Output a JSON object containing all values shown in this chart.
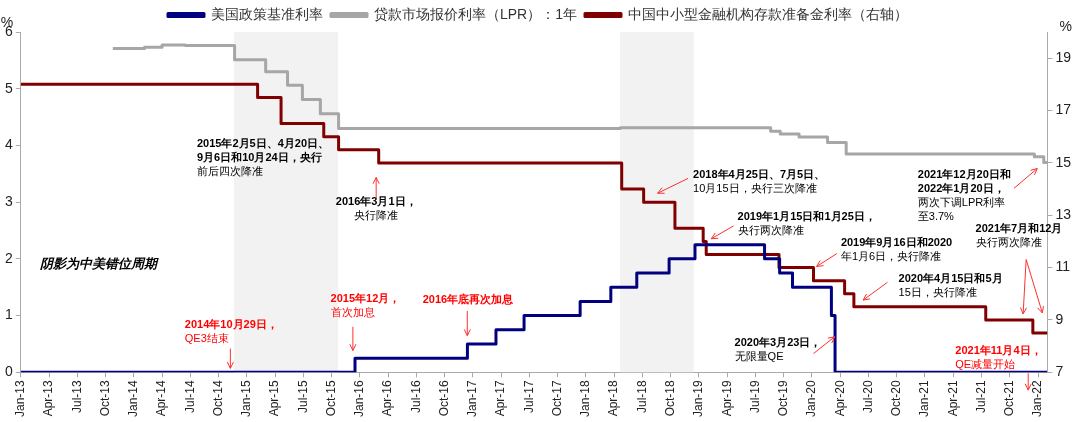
{
  "chart_data": {
    "type": "step",
    "legend": "top",
    "grid": false,
    "marker": "none",
    "ylabel": "%",
    "y2label": "%",
    "xlim": [
      "2013-01",
      "2022-02"
    ],
    "xticks": [
      {
        "value": "2013-01",
        "label": "Jan-13"
      },
      {
        "value": "2013-04",
        "label": "Apr-13"
      },
      {
        "value": "2013-07",
        "label": "Jul-13"
      },
      {
        "value": "2013-10",
        "label": "Oct-13"
      },
      {
        "value": "2014-01",
        "label": "Jan-14"
      },
      {
        "value": "2014-04",
        "label": "Apr-14"
      },
      {
        "value": "2014-07",
        "label": "Jul-14"
      },
      {
        "value": "2014-10",
        "label": "Oct-14"
      },
      {
        "value": "2015-01",
        "label": "Jan-15"
      },
      {
        "value": "2015-04",
        "label": "Apr-15"
      },
      {
        "value": "2015-07",
        "label": "Jul-15"
      },
      {
        "value": "2015-10",
        "label": "Oct-15"
      },
      {
        "value": "2016-01",
        "label": "Jan-16"
      },
      {
        "value": "2016-04",
        "label": "Apr-16"
      },
      {
        "value": "2016-07",
        "label": "Jul-16"
      },
      {
        "value": "2016-10",
        "label": "Oct-16"
      },
      {
        "value": "2017-01",
        "label": "Jan-17"
      },
      {
        "value": "2017-04",
        "label": "Apr-17"
      },
      {
        "value": "2017-07",
        "label": "Jul-17"
      },
      {
        "value": "2017-10",
        "label": "Oct-17"
      },
      {
        "value": "2018-01",
        "label": "Jan-18"
      },
      {
        "value": "2018-04",
        "label": "Apr-18"
      },
      {
        "value": "2018-07",
        "label": "Jul-18"
      },
      {
        "value": "2018-10",
        "label": "Oct-18"
      },
      {
        "value": "2019-01",
        "label": "Jan-19"
      },
      {
        "value": "2019-04",
        "label": "Apr-19"
      },
      {
        "value": "2019-07",
        "label": "Jul-19"
      },
      {
        "value": "2019-10",
        "label": "Oct-19"
      },
      {
        "value": "2020-01",
        "label": "Jan-20"
      },
      {
        "value": "2020-04",
        "label": "Apr-20"
      },
      {
        "value": "2020-07",
        "label": "Jul-20"
      },
      {
        "value": "2020-10",
        "label": "Oct-20"
      },
      {
        "value": "2021-01",
        "label": "Jan-21"
      },
      {
        "value": "2021-04",
        "label": "Apr-21"
      },
      {
        "value": "2021-07",
        "label": "Jul-21"
      },
      {
        "value": "2021-10",
        "label": "Oct-21"
      },
      {
        "value": "2022-01",
        "label": "Jan-22"
      }
    ],
    "ylim": [
      0,
      6
    ],
    "yticks": [
      0,
      1,
      2,
      3,
      4,
      5,
      6
    ],
    "y2lim": [
      7,
      20
    ],
    "y2ticks": [
      7,
      9,
      11,
      13,
      15,
      17,
      19
    ],
    "bands": [
      {
        "axis": "x",
        "from": "2014-11-20",
        "to": "2015-10-22",
        "color": "#f2f2f2"
      },
      {
        "axis": "x",
        "from": "2018-04-20",
        "to": "2018-12-15",
        "color": "#f2f2f2"
      }
    ],
    "series": [
      {
        "name": "美国政策基准利率",
        "color": "#000080",
        "axis": "y",
        "x": [
          "2013-01",
          "2015-12-16",
          "2016-12-14",
          "2017-03-15",
          "2017-06-14",
          "2017-12-13",
          "2018-03-21",
          "2018-06-13",
          "2018-09-26",
          "2018-12-19",
          "2019-07-31",
          "2019-09-18",
          "2019-10-30",
          "2020-03-03",
          "2020-03-15",
          "2022-01-31"
        ],
        "values": [
          0,
          0.25,
          0.5,
          0.75,
          1,
          1.25,
          1.5,
          1.75,
          2,
          2.25,
          2,
          1.75,
          1.5,
          1,
          0,
          0
        ]
      },
      {
        "name": "贷款市场报价利率（LPR）：1年",
        "color": "#a6a6a6",
        "axis": "y",
        "x": [
          "2013-10-25",
          "2014-02-05",
          "2014-04-01",
          "2014-06-15",
          "2014-11-22",
          "2015-03-01",
          "2015-05-11",
          "2015-06-28",
          "2015-08-26",
          "2015-10-24",
          "2018-04-20",
          "2019-08-20",
          "2019-09-20",
          "2019-11-20",
          "2020-02-20",
          "2020-04-20",
          "2021-12-20",
          "2022-01-20",
          "2022-01-31"
        ],
        "values": [
          5.71,
          5.73,
          5.77,
          5.76,
          5.51,
          5.3,
          5.06,
          4.81,
          4.56,
          4.3,
          4.31,
          4.25,
          4.2,
          4.15,
          4.05,
          3.85,
          3.8,
          3.7,
          3.7
        ]
      },
      {
        "name": "中国中小型金融机构存款准备金利率（右轴）",
        "color": "#800000",
        "axis": "y2",
        "x": [
          "2013-01",
          "2015-02-05",
          "2015-04-20",
          "2015-09-06",
          "2015-10-24",
          "2016-03-01",
          "2018-04-25",
          "2018-07-05",
          "2018-10-15",
          "2019-01-15",
          "2019-01-25",
          "2019-09-16",
          "2020-01-06",
          "2020-04-15",
          "2020-05-15",
          "2021-07-15",
          "2021-12-15",
          "2022-02"
        ],
        "values": [
          18,
          17.5,
          16.5,
          16,
          15.5,
          15,
          14,
          13.5,
          12.5,
          12,
          11.5,
          11,
          10.5,
          10,
          9.5,
          9,
          8.5,
          8.5
        ]
      }
    ],
    "annotations": [
      "阴影为中美错位周期",
      "2015年2月5日、4月20日、9月6日和10月24日，央行前后四次降准",
      "2016年3月1日，央行降准",
      "2014年10月29日，QE3结束",
      "2015年12月，首次加息",
      "2016年底再次加息",
      "2018年4月25日、7月5日、10月15日，央行三次降准",
      "2019年1月15日和1月25日，央行两次降准",
      "2019年9月16日和2020年1月6日，央行降准",
      "2020年4月15日和5月15日，央行降准",
      "2020年3月23日，无限量QE",
      "2021年12月20日和2022年1月20日，两次下调LPR利率至3.7%",
      "2021年7月和12月央行两次降准",
      "2021年11月4日，QE减量开始"
    ]
  }
}
